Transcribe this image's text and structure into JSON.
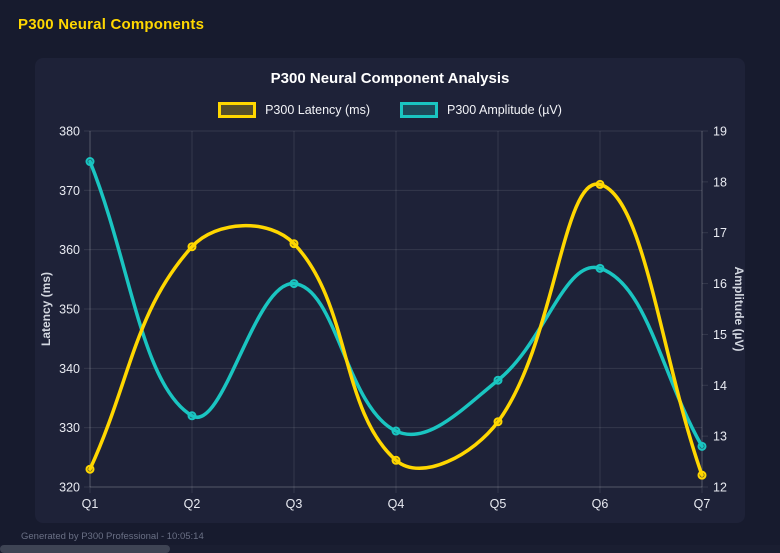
{
  "header": {
    "title": "P300 Neural Components"
  },
  "footer": {
    "text": "Generated by P300 Professional - 10:05:14"
  },
  "colors": {
    "page_bg": "#171B2E",
    "card_bg": "#1E2238",
    "grid": "rgba(255,255,255,0.10)",
    "axis_border": "rgba(255,255,255,0.16)",
    "title_text": "#FFFFFF",
    "tick_text": "#E8EAF1",
    "axis_title_text": "#D3D7E0",
    "header_text": "#FFD700",
    "footer_text": "#6A7085",
    "latency_yellow": "#FFD700",
    "amplitude_teal": "#1AC5C1"
  },
  "chart_data": {
    "type": "line",
    "title": "P300 Neural Component Analysis",
    "categories": [
      "Q1",
      "Q2",
      "Q3",
      "Q4",
      "Q5",
      "Q6",
      "Q7"
    ],
    "series": [
      {
        "name": "P300 Latency (ms)",
        "yAxis": "left",
        "color": "#FFD700",
        "values": [
          323,
          360.5,
          361,
          324.5,
          331,
          371,
          322
        ]
      },
      {
        "name": "P300 Amplitude (µV)",
        "yAxis": "right",
        "color": "#1AC5C1",
        "values": [
          18.4,
          13.4,
          16.0,
          13.1,
          14.1,
          16.3,
          12.8
        ]
      }
    ],
    "axes": {
      "left": {
        "label": "Latency (ms)",
        "min": 320,
        "max": 380,
        "step": 10
      },
      "right": {
        "label": "Amplitude (µV)",
        "min": 12,
        "max": 19,
        "step": 1
      }
    },
    "grid": true,
    "legend_position": "top",
    "curve_tension": 0.4
  }
}
